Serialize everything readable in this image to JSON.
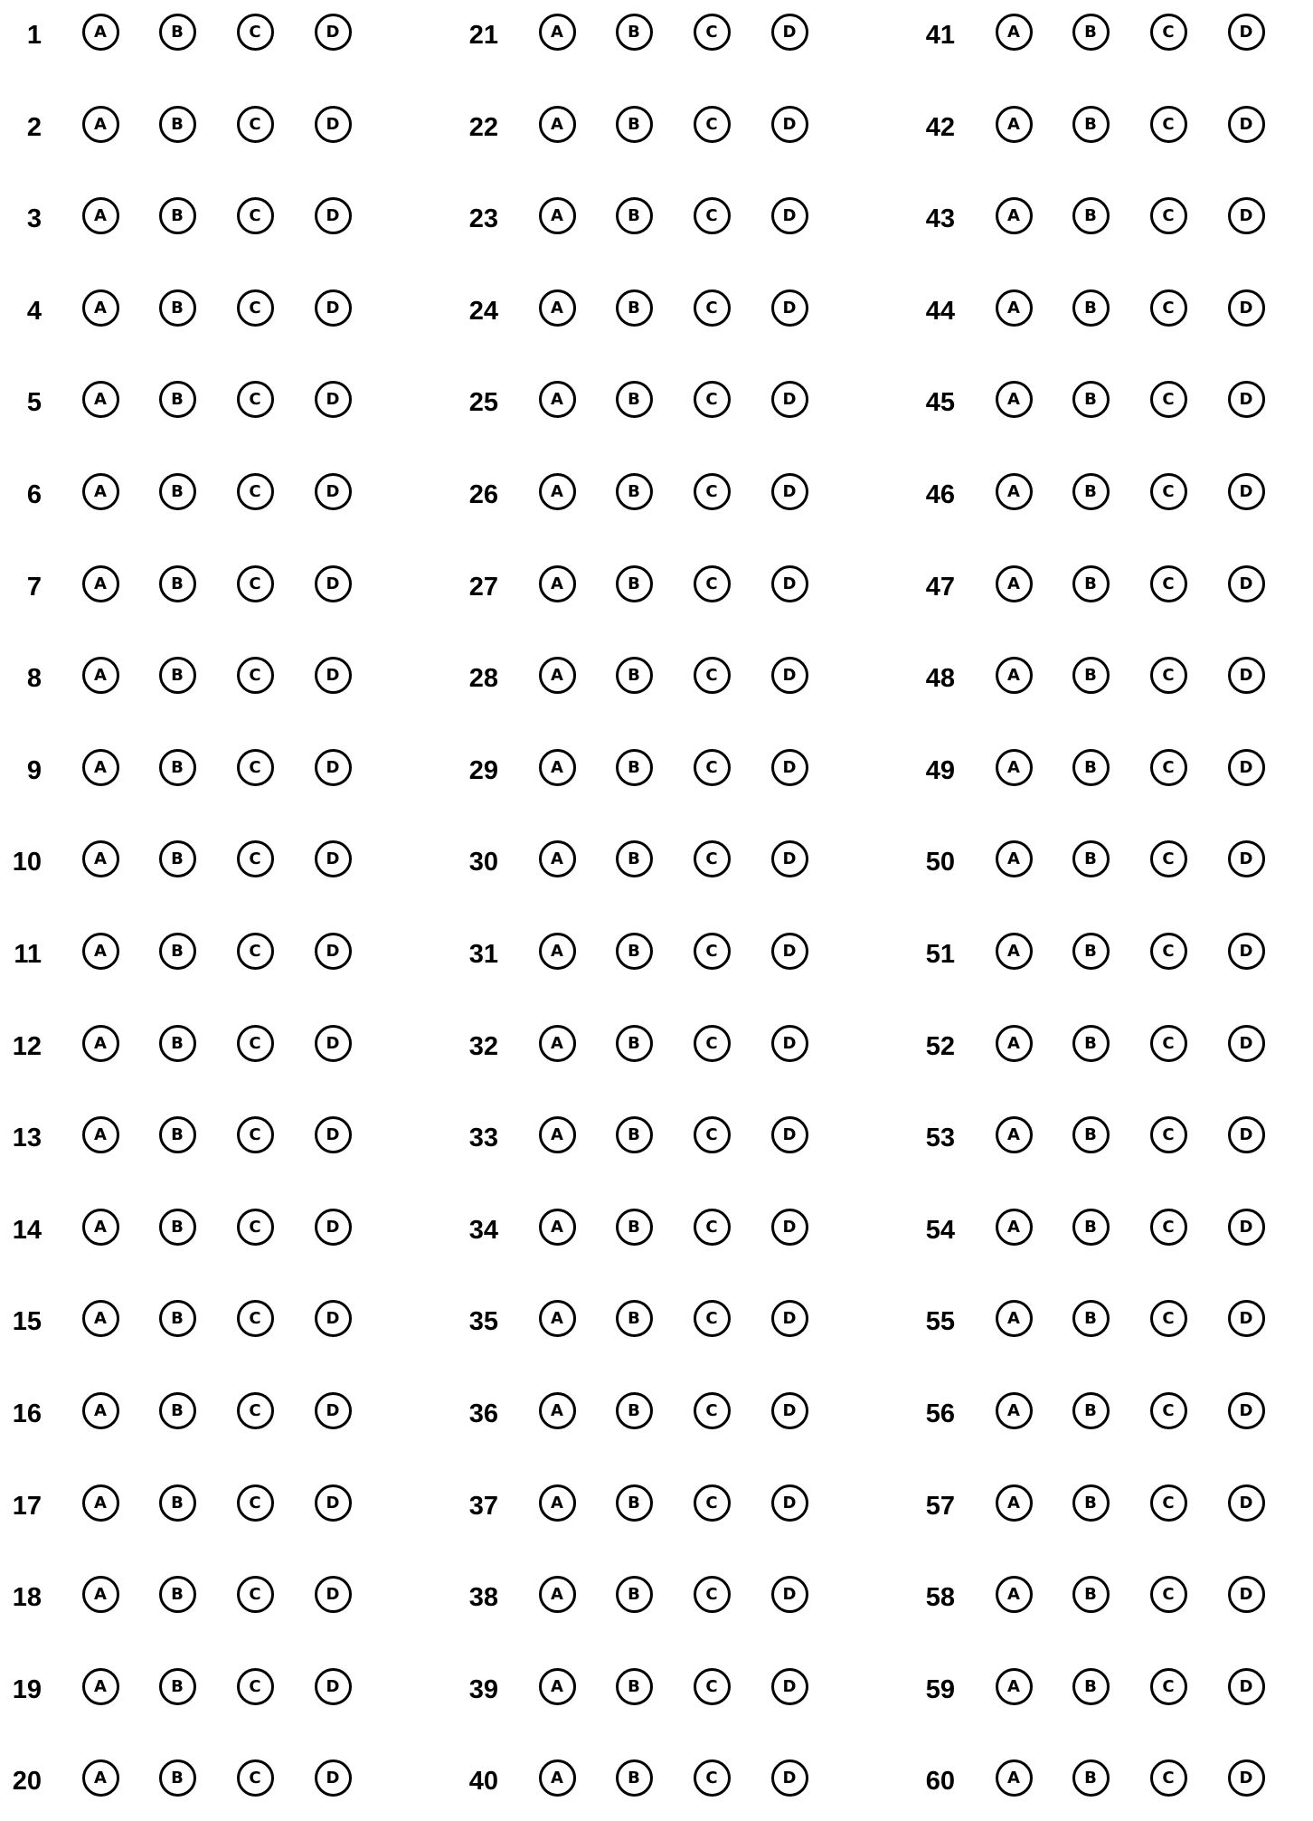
{
  "sheet": {
    "options": [
      "A",
      "B",
      "C",
      "D"
    ],
    "columns": [
      {
        "questions": [
          "1",
          "2",
          "3",
          "4",
          "5",
          "6",
          "7",
          "8",
          "9",
          "10",
          "11",
          "12",
          "13",
          "14",
          "15",
          "16",
          "17",
          "18",
          "19",
          "20"
        ]
      },
      {
        "questions": [
          "21",
          "22",
          "23",
          "24",
          "25",
          "26",
          "27",
          "28",
          "29",
          "30",
          "31",
          "32",
          "33",
          "34",
          "35",
          "36",
          "37",
          "38",
          "39",
          "40"
        ]
      },
      {
        "questions": [
          "41",
          "42",
          "43",
          "44",
          "45",
          "46",
          "47",
          "48",
          "49",
          "50",
          "51",
          "52",
          "53",
          "54",
          "55",
          "56",
          "57",
          "58",
          "59",
          "60"
        ]
      }
    ]
  },
  "colors": {
    "ink": "#000000",
    "paper": "#ffffff"
  }
}
